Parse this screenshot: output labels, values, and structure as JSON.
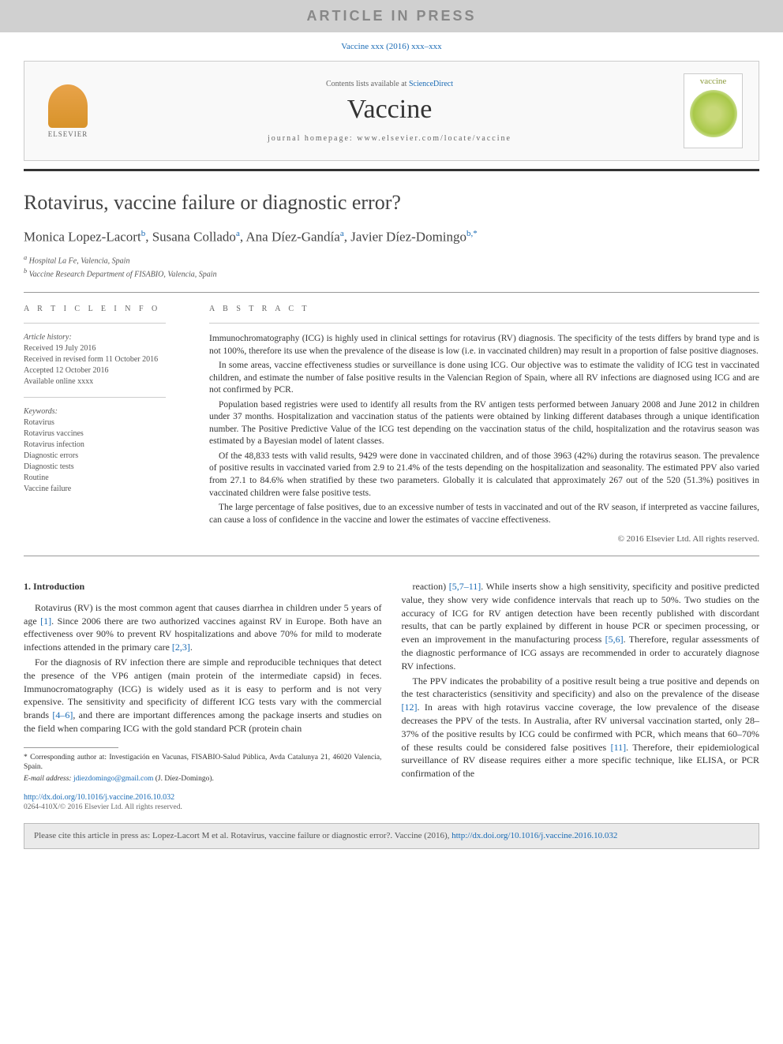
{
  "banner": "ARTICLE IN PRESS",
  "citation_top": "Vaccine xxx (2016) xxx–xxx",
  "header": {
    "contents_prefix": "Contents lists available at ",
    "contents_link": "ScienceDirect",
    "journal_name": "Vaccine",
    "homepage_label": "journal homepage: ",
    "homepage_url": "www.elsevier.com/locate/vaccine",
    "publisher_name": "ELSEVIER",
    "cover_label": "vaccine"
  },
  "title": "Rotavirus, vaccine failure or diagnostic error?",
  "authors_html": "Monica Lopez-Lacort|b|, Susana Collado|a|, Ana Díez-Gandía|a|, Javier Díez-Domingo|b,*",
  "authors": [
    {
      "name": "Monica Lopez-Lacort",
      "aff": "b"
    },
    {
      "name": "Susana Collado",
      "aff": "a"
    },
    {
      "name": "Ana Díez-Gandía",
      "aff": "a"
    },
    {
      "name": "Javier Díez-Domingo",
      "aff": "b,*"
    }
  ],
  "affiliations": {
    "a": "Hospital La Fe, Valencia, Spain",
    "b": "Vaccine Research Department of FISABIO, Valencia, Spain"
  },
  "article_info": {
    "heading": "A R T I C L E   I N F O",
    "history_label": "Article history:",
    "history": [
      "Received 19 July 2016",
      "Received in revised form 11 October 2016",
      "Accepted 12 October 2016",
      "Available online xxxx"
    ],
    "keywords_label": "Keywords:",
    "keywords": [
      "Rotavirus",
      "Rotavirus vaccines",
      "Rotavirus infection",
      "Diagnostic errors",
      "Diagnostic tests",
      "Routine",
      "Vaccine failure"
    ]
  },
  "abstract": {
    "heading": "A B S T R A C T",
    "paragraphs": [
      "Immunochromatography (ICG) is highly used in clinical settings for rotavirus (RV) diagnosis. The specificity of the tests differs by brand type and is not 100%, therefore its use when the prevalence of the disease is low (i.e. in vaccinated children) may result in a proportion of false positive diagnoses.",
      "In some areas, vaccine effectiveness studies or surveillance is done using ICG. Our objective was to estimate the validity of ICG test in vaccinated children, and estimate the number of false positive results in the Valencian Region of Spain, where all RV infections are diagnosed using ICG and are not confirmed by PCR.",
      "Population based registries were used to identify all results from the RV antigen tests performed between January 2008 and June 2012 in children under 37 months. Hospitalization and vaccination status of the patients were obtained by linking different databases through a unique identification number. The Positive Predictive Value of the ICG test depending on the vaccination status of the child, hospitalization and the rotavirus season was estimated by a Bayesian model of latent classes.",
      "Of the 48,833 tests with valid results, 9429 were done in vaccinated children, and of those 3963 (42%) during the rotavirus season. The prevalence of positive results in vaccinated varied from 2.9 to 21.4% of the tests depending on the hospitalization and seasonality. The estimated PPV also varied from 27.1 to 84.6% when stratified by these two parameters. Globally it is calculated that approximately 267 out of the 520 (51.3%) positives in vaccinated children were false positive tests.",
      "The large percentage of false positives, due to an excessive number of tests in vaccinated and out of the RV season, if interpreted as vaccine failures, can cause a loss of confidence in the vaccine and lower the estimates of vaccine effectiveness."
    ],
    "copyright": "© 2016 Elsevier Ltd. All rights reserved."
  },
  "body": {
    "section_head": "1. Introduction",
    "left_paras": [
      "Rotavirus (RV) is the most common agent that causes diarrhea in children under 5 years of age [1]. Since 2006 there are two authorized vaccines against RV in Europe. Both have an effectiveness over 90% to prevent RV hospitalizations and above 70% for mild to moderate infections attended in the primary care [2,3].",
      "For the diagnosis of RV infection there are simple and reproducible techniques that detect the presence of the VP6 antigen (main protein of the intermediate capsid) in feces. Immunocromatography (ICG) is widely used as it is easy to perform and is not very expensive. The sensitivity and specificity of different ICG tests vary with the commercial brands [4–6], and there are important differences among the package inserts and studies on the field when comparing ICG with the gold standard PCR (protein chain"
    ],
    "right_paras": [
      "reaction) [5,7–11]. While inserts show a high sensitivity, specificity and positive predicted value, they show very wide confidence intervals that reach up to 50%. Two studies on the accuracy of ICG for RV antigen detection have been recently published with discordant results, that can be partly explained by different in house PCR or specimen processing, or even an improvement in the manufacturing process [5,6]. Therefore, regular assessments of the diagnostic performance of ICG assays are recommended in order to accurately diagnose RV infections.",
      "The PPV indicates the probability of a positive result being a true positive and depends on the test characteristics (sensitivity and specificity) and also on the prevalence of the disease [12]. In areas with high rotavirus vaccine coverage, the low prevalence of the disease decreases the PPV of the tests. In Australia, after RV universal vaccination started, only 28–37% of the positive results by ICG could be confirmed with PCR, which means that 60–70% of these results could be considered false positives [11]. Therefore, their epidemiological surveillance of RV disease requires either a more specific technique, like ELISA, or PCR confirmation of the"
    ],
    "refs": [
      "[1]",
      "[2,3]",
      "[4–6]",
      "[5,7–11]",
      "[5,6]",
      "[12]",
      "[11]"
    ]
  },
  "corresponding": {
    "star": "* Corresponding author at: Investigación en Vacunas, FISABIO-Salud Pública, Avda Catalunya 21, 46020 Valencia, Spain.",
    "email_label": "E-mail address: ",
    "email": "jdiezdomingo@gmail.com",
    "email_name": " (J. Díez-Domingo)."
  },
  "footer": {
    "doi": "http://dx.doi.org/10.1016/j.vaccine.2016.10.032",
    "issn_copyright": "0264-410X/© 2016 Elsevier Ltd. All rights reserved."
  },
  "cite_box": {
    "prefix": "Please cite this article in press as: Lopez-Lacort M et al. Rotavirus, vaccine failure or diagnostic error?. Vaccine (2016), ",
    "link": "http://dx.doi.org/10.1016/j.vaccine.2016.10.032"
  },
  "colors": {
    "link": "#1a6bb5",
    "banner_bg": "#d0d0d0",
    "banner_text": "#888888",
    "cite_bg": "#eaeaea"
  }
}
